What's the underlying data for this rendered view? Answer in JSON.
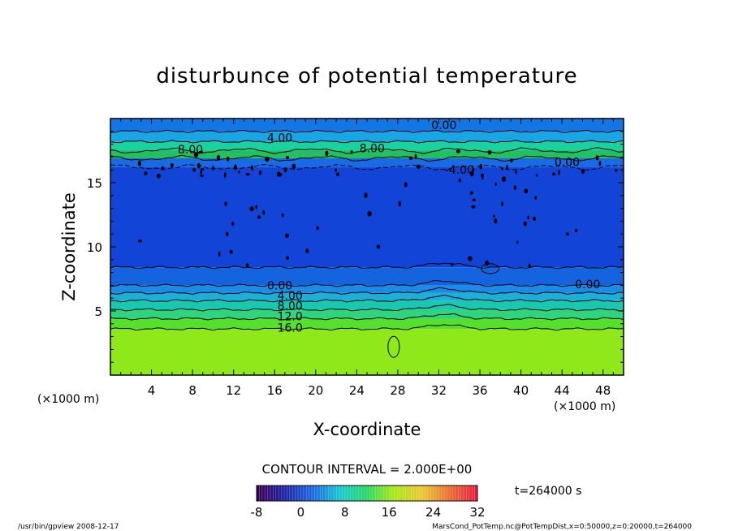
{
  "chart_data": {
    "type": "heatmap",
    "title": "disturbunce of potential temperature",
    "xlabel": "X-coordinate",
    "ylabel": "Z-coordinate",
    "x_unit_label": "(×1000 m)",
    "y_unit_label": "(×1000 m)",
    "xlim": [
      0,
      50
    ],
    "ylim": [
      0,
      20
    ],
    "x_ticks": [
      "4",
      "8",
      "12",
      "16",
      "20",
      "24",
      "28",
      "32",
      "36",
      "40",
      "44",
      "48"
    ],
    "y_ticks": [
      "5",
      "10",
      "15"
    ],
    "contour_interval_label": "CONTOUR INTERVAL = 2.000E+00",
    "time_label": "t=264000 s",
    "colorbar": {
      "min": -8,
      "max": 32,
      "ticks": [
        "-8",
        "0",
        "8",
        "16",
        "24",
        "32"
      ]
    },
    "contour_labels": [
      {
        "text": "0.00",
        "x": 32.5,
        "z": 19.5
      },
      {
        "text": "4.00",
        "x": 16.5,
        "z": 18.5
      },
      {
        "text": "8.00",
        "x": 7.8,
        "z": 17.6
      },
      {
        "text": "8.00",
        "x": 25.5,
        "z": 17.7
      },
      {
        "text": "-4.00",
        "x": 34,
        "z": 16.0
      },
      {
        "text": "0.00",
        "x": 44.5,
        "z": 16.6
      },
      {
        "text": "0.00",
        "x": 16.5,
        "z": 7.0
      },
      {
        "text": "0.00",
        "x": 46.5,
        "z": 7.1
      },
      {
        "text": "4.00",
        "x": 17.5,
        "z": 6.2
      },
      {
        "text": "8.00",
        "x": 17.5,
        "z": 5.4
      },
      {
        "text": "12.0",
        "x": 17.5,
        "z": 4.6
      },
      {
        "text": "16.0",
        "x": 17.5,
        "z": 3.7
      }
    ],
    "bands": [
      {
        "z0": 0,
        "z1": 3.6,
        "value": 18,
        "color": "#8fe81a"
      },
      {
        "z0": 3.6,
        "z1": 4.4,
        "value": 14,
        "color": "#54e02c"
      },
      {
        "z0": 4.4,
        "z1": 5.1,
        "value": 11,
        "color": "#2fd47e"
      },
      {
        "z0": 5.1,
        "z1": 5.8,
        "value": 8,
        "color": "#18c8b0"
      },
      {
        "z0": 5.8,
        "z1": 6.4,
        "value": 5,
        "color": "#1ab0d8"
      },
      {
        "z0": 6.4,
        "z1": 7.0,
        "value": 2,
        "color": "#1a8ce8"
      },
      {
        "z0": 7.0,
        "z1": 8.4,
        "value": -1,
        "color": "#1464e0"
      },
      {
        "z0": 8.4,
        "z1": 16.2,
        "value": -4,
        "color": "#1244d8"
      },
      {
        "z0": 16.2,
        "z1": 16.9,
        "value": -1,
        "color": "#1a6ae6"
      },
      {
        "z0": 16.9,
        "z1": 17.5,
        "value": 8,
        "color": "#22c060"
      },
      {
        "z0": 17.5,
        "z1": 18.2,
        "value": 6,
        "color": "#1ad2a0"
      },
      {
        "z0": 18.2,
        "z1": 19.0,
        "value": 3,
        "color": "#1aa6e4"
      },
      {
        "z0": 19.0,
        "z1": 20,
        "value": 0,
        "color": "#1476e4"
      }
    ]
  },
  "footer": {
    "left": "/usr/bin/gpview   2008-12-17",
    "right": "MarsCond_PotTemp.nc@PotTempDist,x=0:50000,z=0:20000,t=264000"
  }
}
